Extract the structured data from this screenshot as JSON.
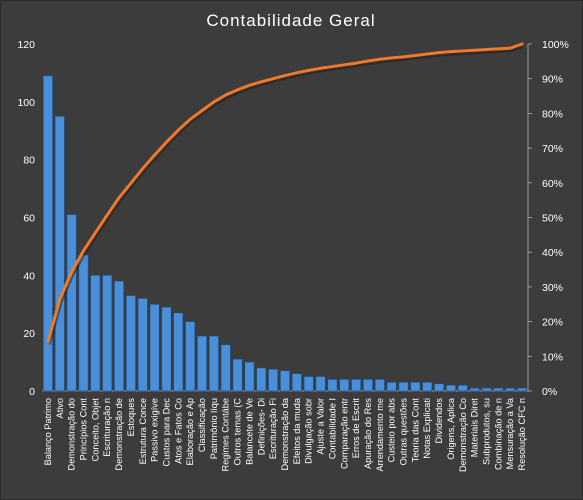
{
  "chart_data": {
    "type": "bar",
    "title": "Contabilidade  Geral",
    "xlabel": "",
    "ylabel": "",
    "ylim": [
      0,
      120
    ],
    "y_ticks": [
      "0",
      "20",
      "40",
      "60",
      "80",
      "100",
      "120"
    ],
    "y2lim": [
      0,
      100
    ],
    "y2_ticks": [
      "0%",
      "10%",
      "20%",
      "30%",
      "40%",
      "50%",
      "60%",
      "70%",
      "80%",
      "90%",
      "100%"
    ],
    "grid": false,
    "legend": "none",
    "categories": [
      "Balanço Patrimo",
      "Ativo",
      "Demonstração do",
      "Princípios Cont",
      "Conceito, Objet",
      "Escrituração n",
      "Demonstração de",
      "Estoques",
      "Estrutura Conce",
      "Passivo exigíve",
      "Custos para Dec",
      "Atos e Fatos Co",
      "Elaboração e Ap",
      "Classificação",
      "Patrimônio líqu",
      "Regimes Contábe",
      "Outros temas (C",
      "Balancete de Ve",
      "Definições- Di",
      "Escrituração Fi",
      "Demonstração da",
      "Efeitos da muda",
      "Divulgação sobr",
      "Ajuste a Valor",
      "Contabilidade I",
      "Comparação entr",
      "Erros de Escrit",
      "Apuração do Res",
      "Arrendamento me",
      "Custeio por abs",
      "Outras questões",
      "Teoria das Cont",
      "Notas Explicati",
      "Dividendos",
      "Origens, Aplica",
      "Demonstração Co",
      "Materiais Diret",
      "Subprodutos, su",
      "Combinação de n",
      "Mensuração a Va",
      "Resolução CFC n"
    ],
    "series": [
      {
        "type": "bar",
        "values": [
          109,
          95,
          61,
          47,
          40,
          40,
          38,
          33,
          32,
          30,
          29,
          27,
          24,
          19,
          19,
          16,
          11,
          10,
          8,
          7.5,
          7,
          6,
          5,
          5,
          4,
          4,
          4,
          4,
          4,
          3,
          3,
          3,
          3,
          2.5,
          2,
          2,
          1,
          1,
          1,
          1,
          1
        ],
        "color": "#4a8fd9"
      },
      {
        "type": "line",
        "axis": "secondary",
        "values": [
          14.1,
          26.4,
          34.3,
          40.4,
          45.6,
          50.7,
          55.7,
          59.9,
          64.1,
          68.0,
          71.7,
          75.2,
          78.3,
          80.8,
          83.3,
          85.3,
          86.8,
          88.1,
          89.1,
          90.0,
          90.9,
          91.7,
          92.4,
          93.0,
          93.5,
          94.0,
          94.5,
          95.1,
          95.6,
          96.0,
          96.3,
          96.7,
          97.1,
          97.5,
          97.8,
          98.0,
          98.2,
          98.4,
          98.6,
          98.8,
          100.0
        ],
        "color": "#f07a2a"
      }
    ]
  }
}
